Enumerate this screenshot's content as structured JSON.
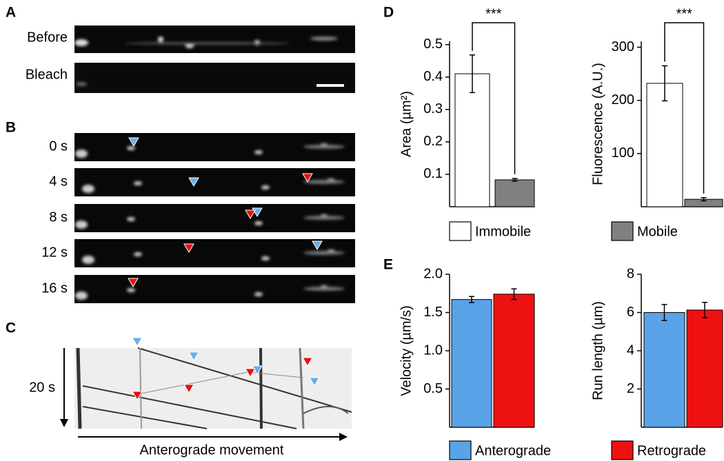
{
  "panel_letters": [
    "A",
    "B",
    "C",
    "D",
    "E"
  ],
  "panel_A": {
    "labels": [
      "Before",
      "Bleach"
    ]
  },
  "panel_B": {
    "labels": [
      "0 s",
      "4 s",
      "8 s",
      "12 s",
      "16 s"
    ]
  },
  "panel_C": {
    "time_label": "20 s",
    "axis_label": "Anterograde movement"
  },
  "chart_data": [
    {
      "type": "bar",
      "ylabel": "Area (µm²)",
      "annotation": "***",
      "categories": [
        null,
        null
      ],
      "values": [
        0.41,
        0.083
      ],
      "errors": [
        0.058,
        0.004
      ],
      "colors": [
        "#ffffff",
        "#808080"
      ],
      "ylim": [
        0,
        0.51
      ],
      "yticks": [
        0.1,
        0.2,
        0.3,
        0.4,
        0.5
      ]
    },
    {
      "type": "bar",
      "ylabel": "Fluorescence (A.U.)",
      "annotation": "***",
      "categories": [
        null,
        null
      ],
      "values": [
        232,
        14
      ],
      "errors": [
        33,
        3
      ],
      "colors": [
        "#ffffff",
        "#808080"
      ],
      "ylim": [
        0,
        311
      ],
      "yticks": [
        100,
        200,
        300
      ]
    },
    {
      "type": "bar",
      "ylabel": "Velocity (µm/s)",
      "categories": [
        null,
        null
      ],
      "values": [
        1.67,
        1.74
      ],
      "errors": [
        0.04,
        0.07
      ],
      "colors": [
        "#5ba3e8",
        "#ee1111"
      ],
      "ylim": [
        0,
        2.0
      ],
      "yticks": [
        {
          "value": 0.5,
          "label": "0.5"
        },
        {
          "value": 1.0,
          "label": "1.0"
        },
        {
          "value": 1.5,
          "label": "1.5"
        },
        {
          "value": 2.0,
          "label": "2.0"
        }
      ]
    },
    {
      "type": "bar",
      "ylabel": "Run length (µm)",
      "categories": [
        null,
        null
      ],
      "values": [
        6.0,
        6.13
      ],
      "errors": [
        0.42,
        0.4
      ],
      "colors": [
        "#5ba3e8",
        "#ee1111"
      ],
      "ylim": [
        0,
        8
      ],
      "yticks": [
        2,
        4,
        6,
        8
      ]
    }
  ],
  "legend_D": [
    {
      "name": "Immobile",
      "color": "#ffffff"
    },
    {
      "name": "Mobile",
      "color": "#808080"
    }
  ],
  "legend_E": [
    {
      "name": "Anterograde",
      "color": "#5ba3e8"
    },
    {
      "name": "Retrograde",
      "color": "#ee1111"
    }
  ]
}
